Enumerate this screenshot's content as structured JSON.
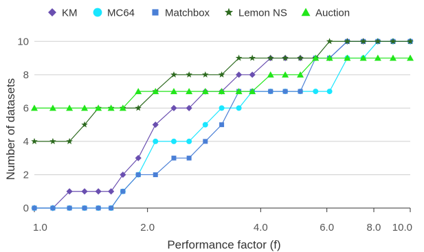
{
  "chart_data": {
    "type": "line",
    "xlabel": "Performance factor (f)",
    "ylabel": "Number of datasets",
    "x_scale": "log",
    "xlim": [
      1.0,
      10.0
    ],
    "ylim": [
      0,
      11
    ],
    "x_ticks": [
      1.0,
      2.0,
      4.0,
      6.0,
      8.0,
      10.0
    ],
    "x_tick_labels": [
      "1.0",
      "2.0",
      "4.0",
      "6.0",
      "8.0",
      "10.0"
    ],
    "y_ticks": [
      0,
      2,
      4,
      6,
      8,
      10
    ],
    "y_tick_labels": [
      "0",
      "2",
      "4",
      "6",
      "8",
      "10"
    ],
    "grid": "horizontal",
    "legend": "top",
    "x": [
      1.0,
      1.12,
      1.24,
      1.36,
      1.48,
      1.6,
      1.72,
      1.89,
      2.1,
      2.35,
      2.58,
      2.85,
      3.15,
      3.5,
      3.8,
      4.25,
      4.65,
      5.1,
      5.6,
      6.1,
      6.8,
      7.5,
      8.2,
      9.0,
      10.0
    ],
    "series": [
      {
        "name": "KM",
        "color": "#6a4fb0",
        "marker": "diamond",
        "values": [
          0,
          0,
          1,
          1,
          1,
          1,
          2,
          3,
          5,
          6,
          6,
          7,
          7,
          8,
          8,
          9,
          9,
          9,
          9,
          9,
          10,
          10,
          10,
          10,
          10
        ]
      },
      {
        "name": "MC64",
        "color": "#19e6ff",
        "marker": "circle",
        "values": [
          0,
          0,
          0,
          0,
          0,
          0,
          1,
          2,
          4,
          4,
          4,
          5,
          6,
          6,
          7,
          7,
          7,
          7,
          7,
          7,
          9,
          9,
          10,
          10,
          10
        ]
      },
      {
        "name": "Matchbox",
        "color": "#4a7fd6",
        "marker": "square",
        "values": [
          0,
          0,
          0,
          0,
          0,
          0,
          1,
          2,
          2,
          3,
          3,
          4,
          5,
          7,
          7,
          7,
          7,
          7,
          9,
          9,
          10,
          10,
          10,
          10,
          10
        ]
      },
      {
        "name": "Lemon NS",
        "color": "#2d6a1f",
        "marker": "star",
        "values": [
          4,
          4,
          4,
          5,
          6,
          6,
          6,
          6,
          7,
          8,
          8,
          8,
          8,
          9,
          9,
          9,
          9,
          9,
          9,
          10,
          10,
          10,
          10,
          10,
          10
        ]
      },
      {
        "name": "Auction",
        "color": "#22e61a",
        "marker": "triangle",
        "values": [
          6,
          6,
          6,
          6,
          6,
          6,
          6,
          7,
          7,
          7,
          7,
          7,
          7,
          7,
          7,
          8,
          8,
          8,
          9,
          9,
          9,
          9,
          9,
          9,
          9
        ]
      }
    ]
  }
}
